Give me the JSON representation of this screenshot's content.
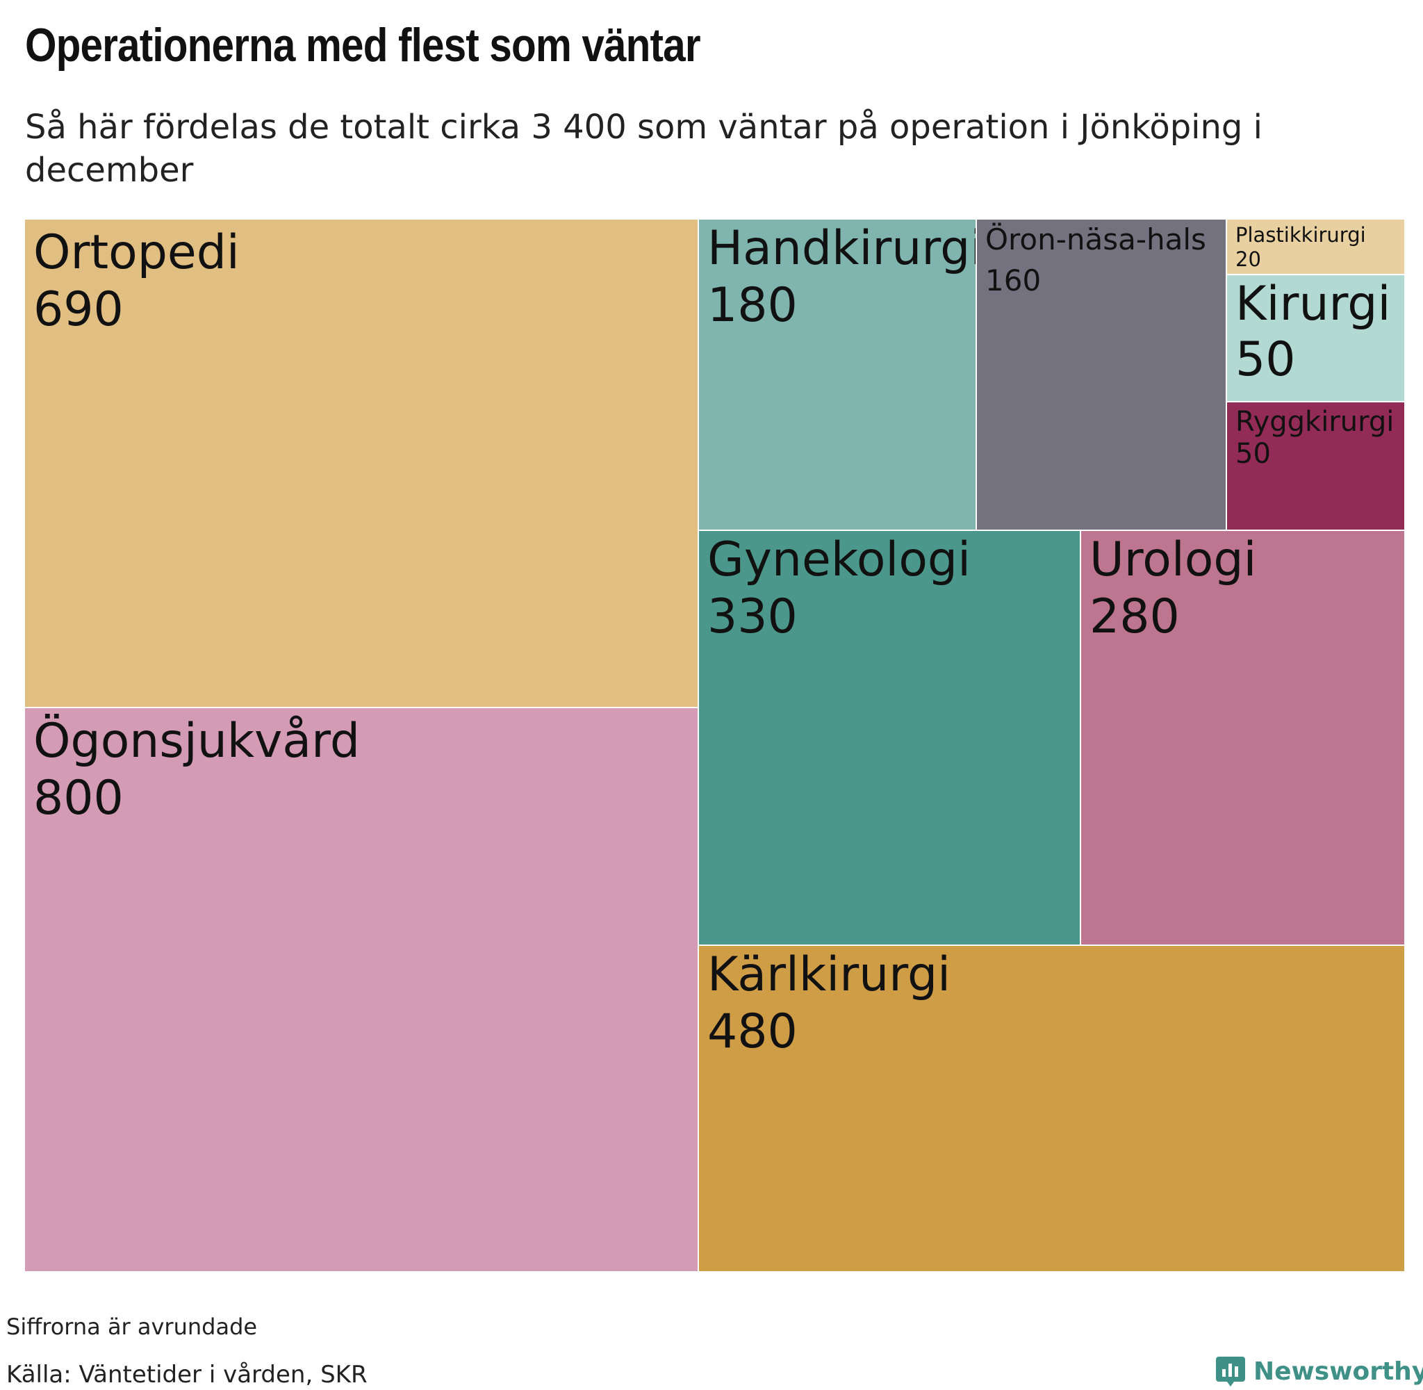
{
  "title": "Operationerna med flest som väntar",
  "subtitle": "Så här fördelas de totalt cirka 3 400 som väntar på operation i Jönköping i december",
  "note": "Siffrorna är avrundade",
  "source": "Källa: Väntetider i vården, SKR",
  "brand": {
    "name": "Newsworthy",
    "color": "#3f9187"
  },
  "chart_data": {
    "type": "treemap",
    "title": "Operationerna med flest som väntar",
    "subtitle": "Så här fördelas de totalt cirka 3 400 som väntar på operation i Jönköping i december",
    "items": [
      {
        "name": "Ortopedi",
        "value": 690,
        "label": "690",
        "color": "#e1be81"
      },
      {
        "name": "Ögonsjukvård",
        "value": 800,
        "label": "800",
        "color": "#d39bb4"
      },
      {
        "name": "Handkirurgi",
        "value": 180,
        "label": "180",
        "color": "#7fb5ae"
      },
      {
        "name": "Öron-näsa-hals",
        "value": 160,
        "label": "160",
        "color": "#75727f"
      },
      {
        "name": "Plastikkirurgi",
        "value": 20,
        "label": "20",
        "color": "#e8d0a0"
      },
      {
        "name": "Kirurgi",
        "value": 50,
        "label": "50",
        "color": "#b2dad3"
      },
      {
        "name": "Ryggkirurgi",
        "value": 50,
        "label": "50",
        "color": "#922b55"
      },
      {
        "name": "Gynekologi",
        "value": 330,
        "label": "330",
        "color": "#4b978b"
      },
      {
        "name": "Urologi",
        "value": 280,
        "label": "280",
        "color": "#be7590"
      },
      {
        "name": "Kärlkirurgi",
        "value": 480,
        "label": "480",
        "color": "#d09d47"
      }
    ]
  }
}
